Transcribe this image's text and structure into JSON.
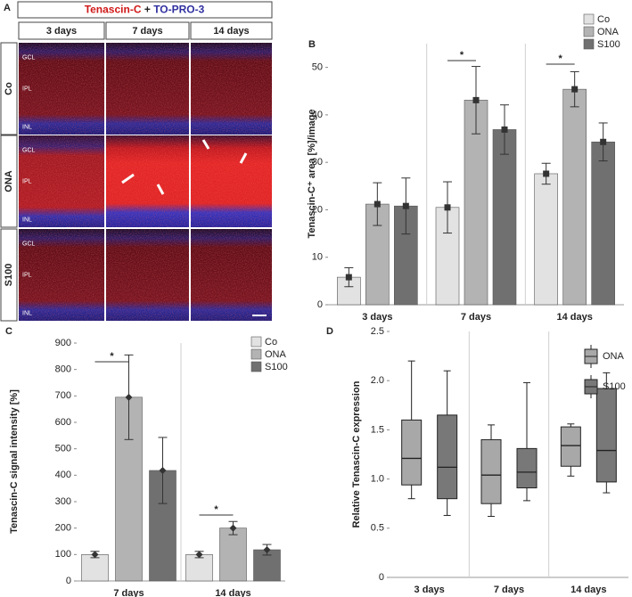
{
  "panel_a": {
    "label": "A",
    "title_parts": [
      "Tenascin-C",
      "+",
      "TO-PRO-3"
    ],
    "columns": [
      "3 days",
      "7 days",
      "14 days"
    ],
    "rows": [
      "Co",
      "ONA",
      "S100"
    ],
    "layers": [
      "GCL",
      "IPL",
      "INL"
    ]
  },
  "chart_data": [
    {
      "panel": "B",
      "type": "bar",
      "y_label": "Tenascin-C⁺ area [%]/image",
      "categories": [
        "3 days",
        "7 days",
        "14 days"
      ],
      "series": [
        {
          "name": "Co",
          "color": "#e2e2e2",
          "values": [
            5.8,
            20.5,
            27.6
          ],
          "errors": [
            2.0,
            5.4,
            2.2
          ]
        },
        {
          "name": "ONA",
          "color": "#b3b3b3",
          "values": [
            21.2,
            43.1,
            45.4
          ],
          "errors": [
            4.5,
            7.1,
            3.7
          ]
        },
        {
          "name": "S100",
          "color": "#707070",
          "values": [
            20.8,
            36.9,
            34.3
          ],
          "errors": [
            5.9,
            5.2,
            4.0
          ]
        }
      ],
      "ylim": [
        0,
        55
      ],
      "yticks": [
        0,
        10,
        20,
        30,
        40,
        50
      ],
      "marker": "square",
      "annotations": [
        "*",
        "*"
      ],
      "category_dividers": true,
      "legend": "top-right"
    },
    {
      "panel": "C",
      "type": "bar",
      "y_label": "Tenascin-C signal intensity [%]",
      "categories": [
        "7 days",
        "14 days"
      ],
      "series": [
        {
          "name": "Co",
          "color": "#e2e2e2",
          "values": [
            100,
            100
          ],
          "errors": [
            12,
            12
          ]
        },
        {
          "name": "ONA",
          "color": "#b3b3b3",
          "values": [
            695,
            200
          ],
          "errors": [
            160,
            25
          ]
        },
        {
          "name": "S100",
          "color": "#707070",
          "values": [
            418,
            118
          ],
          "errors": [
            125,
            20
          ]
        }
      ],
      "ylim": [
        0,
        900
      ],
      "yticks": [
        0,
        100,
        200,
        300,
        400,
        500,
        600,
        700,
        800,
        900
      ],
      "marker": "diamond",
      "annotations": [
        "*",
        "*"
      ],
      "category_dividers": true,
      "legend": "top-right"
    },
    {
      "panel": "D",
      "type": "box",
      "y_label": "Relative Tenascin-C expression",
      "categories": [
        "3 days",
        "7 days",
        "14 days"
      ],
      "series": [
        {
          "name": "ONA",
          "color": "#a8a8a8",
          "min": [
            0.8,
            0.62,
            1.03
          ],
          "q1": [
            0.94,
            0.75,
            1.13
          ],
          "median": [
            1.21,
            1.04,
            1.34
          ],
          "q3": [
            1.6,
            1.4,
            1.53
          ],
          "max": [
            2.2,
            1.55,
            1.56
          ]
        },
        {
          "name": "S100",
          "color": "#787878",
          "min": [
            0.63,
            0.78,
            0.86
          ],
          "q1": [
            0.8,
            0.91,
            0.97
          ],
          "median": [
            1.12,
            1.07,
            1.29
          ],
          "q3": [
            1.65,
            1.31,
            1.92
          ],
          "max": [
            2.1,
            1.98,
            2.08
          ]
        }
      ],
      "ylim": [
        0,
        2.5
      ],
      "yticks": [
        0,
        0.5,
        {
          "value": 1,
          "label": "1.0"
        },
        1.5,
        {
          "value": 2,
          "label": "2.0"
        },
        2.5
      ],
      "category_dividers": true,
      "legend": "top-right"
    }
  ]
}
